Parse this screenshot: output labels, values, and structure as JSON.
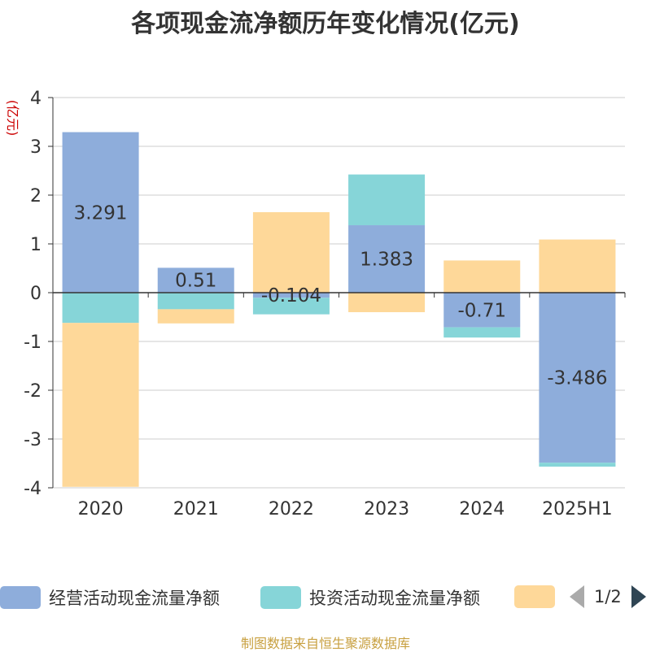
{
  "chart_data": {
    "type": "bar",
    "stacked": true,
    "title": "各项现金流净额历年变化情况(亿元)",
    "ylabel": "(亿元)",
    "categories": [
      "2020",
      "2021",
      "2022",
      "2023",
      "2024",
      "2025H1"
    ],
    "ylim": [
      -4,
      4
    ],
    "yticks": [
      4,
      3,
      2,
      1,
      0,
      -1,
      -2,
      -3,
      -4
    ],
    "grid": true,
    "legend_position": "bottom",
    "series": [
      {
        "name": "经营活动现金流量净额",
        "color": "#8eaddb",
        "values": [
          3.291,
          0.51,
          -0.104,
          1.383,
          -0.71,
          -3.486
        ]
      },
      {
        "name": "投资活动现金流量净额",
        "color": "#86d5d8",
        "values": [
          -0.62,
          -0.34,
          -0.34,
          1.04,
          -0.21,
          -0.08
        ]
      },
      {
        "name": "",
        "color": "#fed899",
        "values": [
          -3.36,
          -0.29,
          1.65,
          -0.4,
          0.66,
          1.09
        ]
      }
    ],
    "data_labels": [
      "3.291",
      "0.51",
      "-0.104",
      "1.383",
      "-0.71",
      "-3.486"
    ]
  },
  "legend": {
    "items": [
      "经营活动现金流量净额",
      "投资活动现金流量净额",
      ""
    ],
    "page": "1/2"
  },
  "source": "制图数据来自恒生聚源数据库"
}
